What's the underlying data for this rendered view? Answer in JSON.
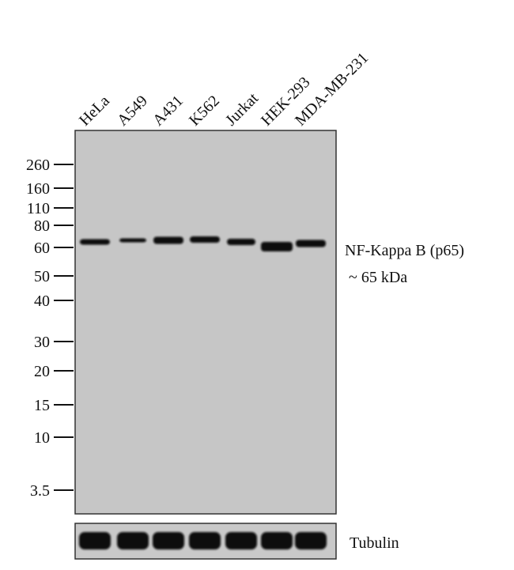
{
  "lanes": [
    "HeLa",
    "A549",
    "A431",
    "K562",
    "Jurkat",
    "HEK-293",
    "MDA-MB-231"
  ],
  "markers": [
    "260",
    "160",
    "110",
    "80",
    "60",
    "50",
    "40",
    "30",
    "20",
    "15",
    "10",
    "3.5"
  ],
  "target": {
    "name": "NF-Kappa B (p65)",
    "size": "~ 65 kDa"
  },
  "loading_control": "Tubulin"
}
